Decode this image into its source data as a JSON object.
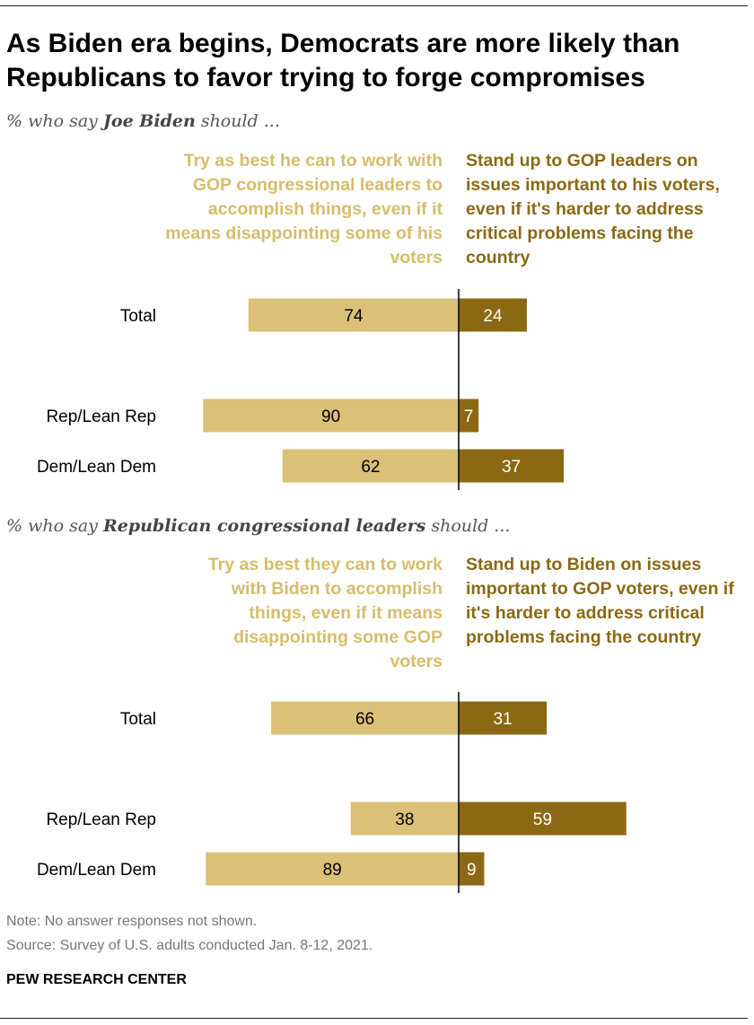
{
  "title": "As Biden era begins, Democrats are more likely than Republicans to favor trying to forge compromises",
  "colors": {
    "left_bar": "#dbc077",
    "right_bar": "#8b6914",
    "left_text": "#d7bc6b",
    "right_text": "#8b6914"
  },
  "panels": [
    {
      "subtitle_pre": "% who say ",
      "subtitle_bold": "Joe Biden",
      "subtitle_post": " should ...",
      "left_header": "Try as best he can to work with GOP congressional leaders to accomplish things, even if it means disappointing some of his voters",
      "right_header": "Stand up to GOP leaders on issues important to his voters, even if it's harder to address critical problems facing the country"
    },
    {
      "subtitle_pre": "% who say ",
      "subtitle_bold": "Republican congressional leaders",
      "subtitle_post": " should ...",
      "left_header": "Try as best they can to work with Biden to accomplish things, even if it means disappointing some GOP voters",
      "right_header": "Stand up to Biden on issues important to GOP voters, even if it's harder to address critical problems facing the country"
    }
  ],
  "chart_data": [
    {
      "type": "bar",
      "orientation": "diverging-horizontal",
      "categories": [
        "Total",
        "Rep/Lean Rep",
        "Dem/Lean Dem"
      ],
      "series": [
        {
          "name": "Try as best he can to work with GOP congressional leaders to accomplish things, even if it means disappointing some of his voters",
          "values": [
            74,
            90,
            62
          ]
        },
        {
          "name": "Stand up to GOP leaders on issues important to his voters, even if it's harder to address critical problems facing the country",
          "values": [
            24,
            7,
            37
          ]
        }
      ],
      "xlim": [
        -100,
        100
      ]
    },
    {
      "type": "bar",
      "orientation": "diverging-horizontal",
      "categories": [
        "Total",
        "Rep/Lean Rep",
        "Dem/Lean Dem"
      ],
      "series": [
        {
          "name": "Try as best they can to work with Biden to accomplish things, even if it means disappointing some GOP voters",
          "values": [
            66,
            38,
            89
          ]
        },
        {
          "name": "Stand up to Biden on issues important to GOP voters, even if it's harder to address critical problems facing the country",
          "values": [
            31,
            59,
            9
          ]
        }
      ],
      "xlim": [
        -100,
        100
      ]
    }
  ],
  "note": "Note: No answer responses not shown.",
  "source": "Source: Survey of U.S. adults conducted Jan. 8-12, 2021.",
  "brand": "PEW RESEARCH CENTER"
}
